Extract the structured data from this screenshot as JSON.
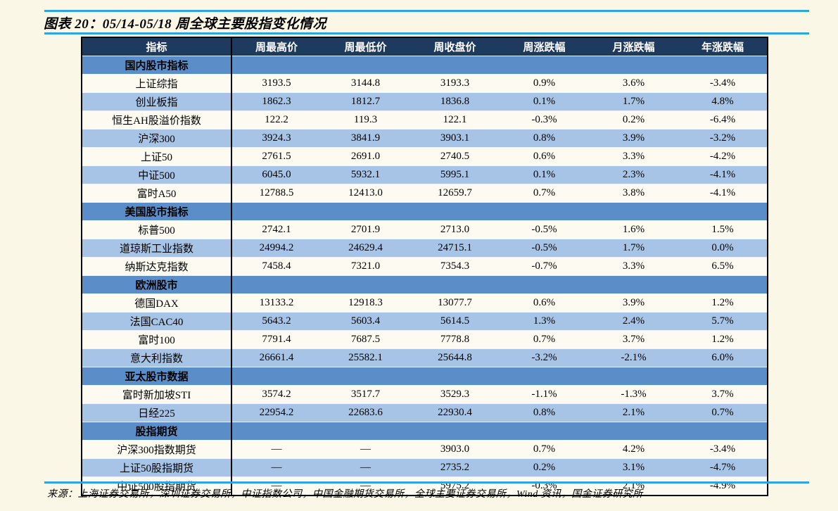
{
  "page": {
    "title": "图表 20：05/14-05/18 周全球主要股指变化情况",
    "source_note": "来源：上海证券交易所，深圳证券交易所，中证指数公司，中国金融期货交易所，全球主要证券交易所，Wind 资讯，国金证券研究所"
  },
  "colors": {
    "accent_line": "#2BA6E0",
    "header_bg": "#1F3A5F",
    "header_text": "#FFFFFF",
    "section_row_bg": "#5B8DC9",
    "row_blue_bg": "#A7C4E6",
    "row_white_bg": "#FDFBF1",
    "page_bg": "#FBF7E6",
    "table_border": "#000000"
  },
  "chart_data": {
    "type": "table",
    "title": "图表 20：05/14-05/18 周全球主要股指变化情况",
    "columns": [
      "指标",
      "周最高价",
      "周最低价",
      "周收盘价",
      "周涨跌幅",
      "月涨跌幅",
      "年涨跌幅"
    ],
    "rows": [
      {
        "type": "section",
        "label": "国内股市指标"
      },
      {
        "type": "data",
        "label": "上证综指",
        "values": [
          "3193.5",
          "3144.8",
          "3193.3",
          "0.9%",
          "3.6%",
          "-3.4%"
        ]
      },
      {
        "type": "data",
        "label": "创业板指",
        "values": [
          "1862.3",
          "1812.7",
          "1836.8",
          "0.1%",
          "1.7%",
          "4.8%"
        ]
      },
      {
        "type": "data",
        "label": "恒生AH股溢价指数",
        "values": [
          "122.2",
          "119.3",
          "122.1",
          "-0.3%",
          "0.2%",
          "-6.4%"
        ]
      },
      {
        "type": "data",
        "label": "沪深300",
        "values": [
          "3924.3",
          "3841.9",
          "3903.1",
          "0.8%",
          "3.9%",
          "-3.2%"
        ]
      },
      {
        "type": "data",
        "label": "上证50",
        "values": [
          "2761.5",
          "2691.0",
          "2740.5",
          "0.6%",
          "3.3%",
          "-4.2%"
        ]
      },
      {
        "type": "data",
        "label": "中证500",
        "values": [
          "6045.0",
          "5932.1",
          "5995.1",
          "0.1%",
          "2.3%",
          "-4.1%"
        ]
      },
      {
        "type": "data",
        "label": "富时A50",
        "values": [
          "12788.5",
          "12413.0",
          "12659.7",
          "0.7%",
          "3.8%",
          "-4.1%"
        ]
      },
      {
        "type": "section",
        "label": "美国股市指标"
      },
      {
        "type": "data",
        "label": "标普500",
        "values": [
          "2742.1",
          "2701.9",
          "2713.0",
          "-0.5%",
          "1.6%",
          "1.5%"
        ]
      },
      {
        "type": "data",
        "label": "道琼斯工业指数",
        "values": [
          "24994.2",
          "24629.4",
          "24715.1",
          "-0.5%",
          "1.7%",
          "0.0%"
        ]
      },
      {
        "type": "data",
        "label": "纳斯达克指数",
        "values": [
          "7458.4",
          "7321.0",
          "7354.3",
          "-0.7%",
          "3.3%",
          "6.5%"
        ]
      },
      {
        "type": "section",
        "label": "欧洲股市"
      },
      {
        "type": "data",
        "label": "德国DAX",
        "values": [
          "13133.2",
          "12918.3",
          "13077.7",
          "0.6%",
          "3.9%",
          "1.2%"
        ]
      },
      {
        "type": "data",
        "label": "法国CAC40",
        "values": [
          "5643.2",
          "5603.4",
          "5614.5",
          "1.3%",
          "2.4%",
          "5.7%"
        ]
      },
      {
        "type": "data",
        "label": "富时100",
        "values": [
          "7791.4",
          "7687.5",
          "7778.8",
          "0.7%",
          "3.7%",
          "1.2%"
        ]
      },
      {
        "type": "data",
        "label": "意大利指数",
        "values": [
          "26661.4",
          "25582.1",
          "25644.8",
          "-3.2%",
          "-2.1%",
          "6.0%"
        ]
      },
      {
        "type": "section",
        "label": "亚太股市数据"
      },
      {
        "type": "data",
        "label": "富时新加坡STI",
        "values": [
          "3574.2",
          "3517.7",
          "3529.3",
          "-1.1%",
          "-1.3%",
          "3.7%"
        ]
      },
      {
        "type": "data",
        "label": "日经225",
        "values": [
          "22954.2",
          "22683.6",
          "22930.4",
          "0.8%",
          "2.1%",
          "0.7%"
        ]
      },
      {
        "type": "section",
        "label": "股指期货"
      },
      {
        "type": "data",
        "label": "沪深300指数期货",
        "values": [
          "—",
          "—",
          "3903.0",
          "0.7%",
          "4.2%",
          "-3.4%"
        ]
      },
      {
        "type": "data",
        "label": "上证50股指期货",
        "values": [
          "—",
          "—",
          "2735.2",
          "0.2%",
          "3.1%",
          "-4.7%"
        ]
      },
      {
        "type": "data",
        "label": "中证500股指期货",
        "values": [
          "—",
          "—",
          "5975.2",
          "-0.3%",
          "2.1%",
          "-4.9%"
        ]
      }
    ]
  }
}
